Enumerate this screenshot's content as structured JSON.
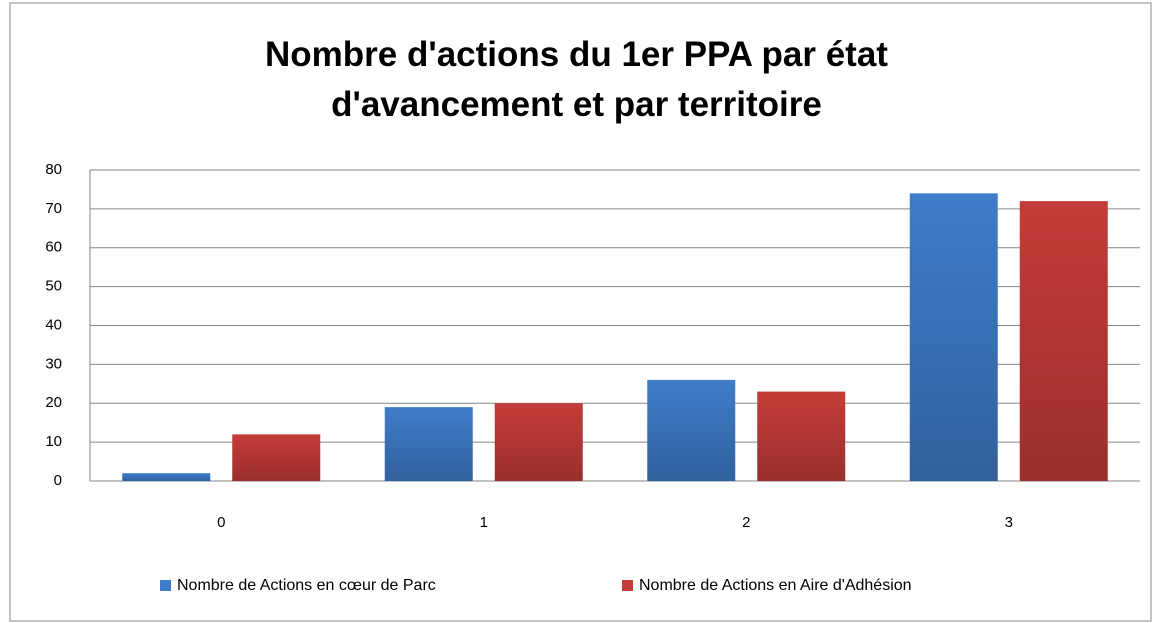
{
  "chart_data": {
    "type": "bar",
    "title": "Nombre d'actions du 1er PPA par état d'avancement et par territoire",
    "categories": [
      "0",
      "1",
      "2",
      "3"
    ],
    "series": [
      {
        "name": "Nombre de Actions en cœur de Parc",
        "color": "#3f7cc9",
        "values": [
          2,
          19,
          26,
          74
        ]
      },
      {
        "name": "Nombre de Actions en Aire d'Adhésion",
        "color": "#c43c39",
        "values": [
          12,
          20,
          23,
          72
        ]
      }
    ],
    "ylim": [
      0,
      80
    ],
    "yticks": [
      0,
      10,
      20,
      30,
      40,
      50,
      60,
      70,
      80
    ],
    "grid": true,
    "legend": "bottom"
  }
}
